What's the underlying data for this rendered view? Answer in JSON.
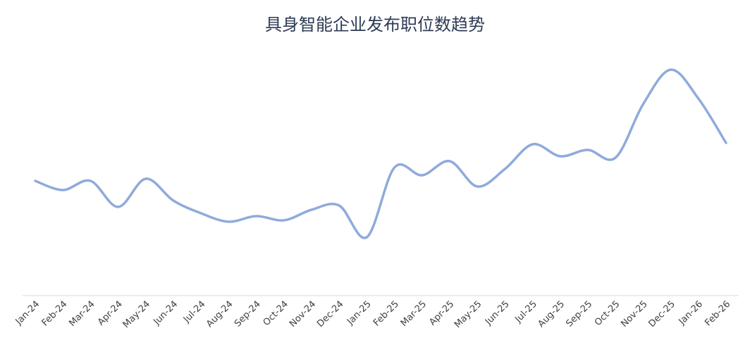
{
  "chart_data": {
    "type": "line",
    "title": "具身智能企业发布职位数趋势",
    "categories": [
      "Jan-24",
      "Feb-24",
      "Mar-24",
      "Apr-24",
      "May-24",
      "Jun-24",
      "Jul-24",
      "Aug-24",
      "Sep-24",
      "Oct-24",
      "Nov-24",
      "Dec-24",
      "Jan-25",
      "Feb-25",
      "Mar-25",
      "Apr-25",
      "May-25",
      "Jun-25",
      "Jul-25",
      "Aug-25",
      "Sep-25",
      "Oct-25",
      "Nov-25",
      "Dec-25",
      "Jan-26",
      "Feb-26"
    ],
    "values": [
      163,
      150,
      163,
      126,
      166,
      135,
      117,
      105,
      113,
      107,
      122,
      128,
      83,
      182,
      171,
      191,
      155,
      180,
      215,
      198,
      207,
      196,
      272,
      321,
      280,
      217
    ],
    "color": "#8faadc",
    "ylim": [
      0,
      340
    ],
    "smooth": true
  }
}
